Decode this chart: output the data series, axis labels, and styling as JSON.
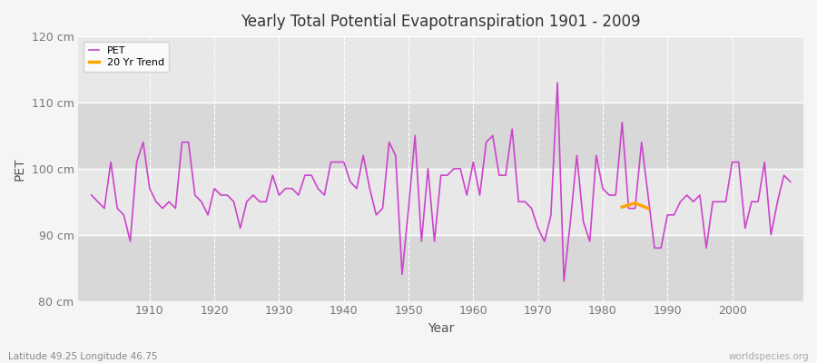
{
  "title": "Yearly Total Potential Evapotranspiration 1901 - 2009",
  "xlabel": "Year",
  "ylabel": "PET",
  "subtitle_left": "Latitude 49.25 Longitude 46.75",
  "subtitle_right": "worldspecies.org",
  "pet_color": "#cc44cc",
  "trend_color": "#ffa500",
  "bg_color": "#f5f5f5",
  "plot_bg_color": "#e8e8e8",
  "alt_band_color": "#d8d8d8",
  "ylim": [
    80,
    120
  ],
  "yticks": [
    80,
    90,
    100,
    110,
    120
  ],
  "ytick_labels": [
    "80 cm",
    "90 cm",
    "100 cm",
    "110 cm",
    "120 cm"
  ],
  "xlim_left": 1901,
  "xlim_right": 2009,
  "years": [
    1901,
    1902,
    1903,
    1904,
    1905,
    1906,
    1907,
    1908,
    1909,
    1910,
    1911,
    1912,
    1913,
    1914,
    1915,
    1916,
    1917,
    1918,
    1919,
    1920,
    1921,
    1922,
    1923,
    1924,
    1925,
    1926,
    1927,
    1928,
    1929,
    1930,
    1931,
    1932,
    1933,
    1934,
    1935,
    1936,
    1937,
    1938,
    1939,
    1940,
    1941,
    1942,
    1943,
    1944,
    1945,
    1946,
    1947,
    1948,
    1949,
    1950,
    1951,
    1952,
    1953,
    1954,
    1955,
    1956,
    1957,
    1958,
    1959,
    1960,
    1961,
    1962,
    1963,
    1964,
    1965,
    1966,
    1967,
    1968,
    1969,
    1970,
    1971,
    1972,
    1973,
    1974,
    1975,
    1976,
    1977,
    1978,
    1979,
    1980,
    1981,
    1982,
    1983,
    1984,
    1985,
    1986,
    1987,
    1988,
    1989,
    1990,
    1991,
    1992,
    1993,
    1994,
    1995,
    1996,
    1997,
    1998,
    1999,
    2000,
    2001,
    2002,
    2003,
    2004,
    2005,
    2006,
    2007,
    2008,
    2009
  ],
  "pet_values": [
    96,
    95,
    94,
    101,
    94,
    93,
    89,
    101,
    104,
    97,
    95,
    94,
    95,
    94,
    104,
    104,
    96,
    95,
    93,
    97,
    96,
    96,
    95,
    91,
    95,
    96,
    95,
    95,
    99,
    96,
    97,
    97,
    96,
    99,
    99,
    97,
    96,
    101,
    101,
    101,
    98,
    97,
    102,
    97,
    93,
    94,
    104,
    102,
    84,
    94,
    105,
    89,
    100,
    89,
    99,
    99,
    100,
    100,
    96,
    101,
    96,
    104,
    105,
    99,
    99,
    106,
    95,
    95,
    94,
    91,
    89,
    93,
    113,
    83,
    92,
    102,
    92,
    89,
    102,
    97,
    96,
    96,
    107,
    94,
    94,
    104,
    96,
    88,
    88,
    93,
    93,
    95,
    96,
    95,
    96,
    88,
    95,
    95,
    95,
    101,
    101,
    91,
    95,
    95,
    101,
    90,
    95,
    99,
    98
  ],
  "trend_years": [
    1983,
    1984,
    1985,
    1986,
    1987
  ],
  "trend_values": [
    94.2,
    94.5,
    94.8,
    94.4,
    94.0
  ]
}
